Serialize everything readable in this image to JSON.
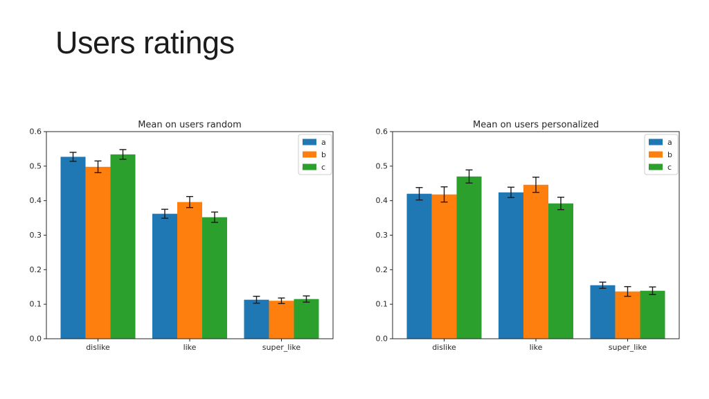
{
  "slide": {
    "title": "Users ratings"
  },
  "colors": {
    "series_a": "#1f77b4",
    "series_b": "#ff7f0e",
    "series_c": "#2ca02c",
    "error_bar": "#1a1a1a",
    "spine": "#262626",
    "legend_border": "#cccccc",
    "background": "#ffffff"
  },
  "chart_data": [
    {
      "type": "bar",
      "title": "Mean on users random",
      "categories": [
        "dislike",
        "like",
        "super_like"
      ],
      "series": [
        {
          "name": "a",
          "color_key": "series_a",
          "values": [
            0.527,
            0.362,
            0.113
          ],
          "errors": [
            0.013,
            0.013,
            0.01
          ]
        },
        {
          "name": "b",
          "color_key": "series_b",
          "values": [
            0.498,
            0.396,
            0.11
          ],
          "errors": [
            0.017,
            0.016,
            0.008
          ]
        },
        {
          "name": "c",
          "color_key": "series_c",
          "values": [
            0.534,
            0.352,
            0.115
          ],
          "errors": [
            0.014,
            0.015,
            0.009
          ]
        }
      ],
      "xlabel": "",
      "ylabel": "",
      "ylim": [
        0.0,
        0.6
      ],
      "yticks": [
        0.0,
        0.1,
        0.2,
        0.3,
        0.4,
        0.5,
        0.6
      ],
      "grid": false,
      "legend_position": "upper right",
      "error_bars": true
    },
    {
      "type": "bar",
      "title": "Mean on users personalized",
      "categories": [
        "dislike",
        "like",
        "super_like"
      ],
      "series": [
        {
          "name": "a",
          "color_key": "series_a",
          "values": [
            0.42,
            0.424,
            0.155
          ],
          "errors": [
            0.018,
            0.015,
            0.009
          ]
        },
        {
          "name": "b",
          "color_key": "series_b",
          "values": [
            0.418,
            0.446,
            0.137
          ],
          "errors": [
            0.022,
            0.022,
            0.014
          ]
        },
        {
          "name": "c",
          "color_key": "series_c",
          "values": [
            0.47,
            0.392,
            0.139
          ],
          "errors": [
            0.019,
            0.018,
            0.011
          ]
        }
      ],
      "xlabel": "",
      "ylabel": "",
      "ylim": [
        0.0,
        0.6
      ],
      "yticks": [
        0.0,
        0.1,
        0.2,
        0.3,
        0.4,
        0.5,
        0.6
      ],
      "grid": false,
      "legend_position": "upper right",
      "error_bars": true
    }
  ]
}
